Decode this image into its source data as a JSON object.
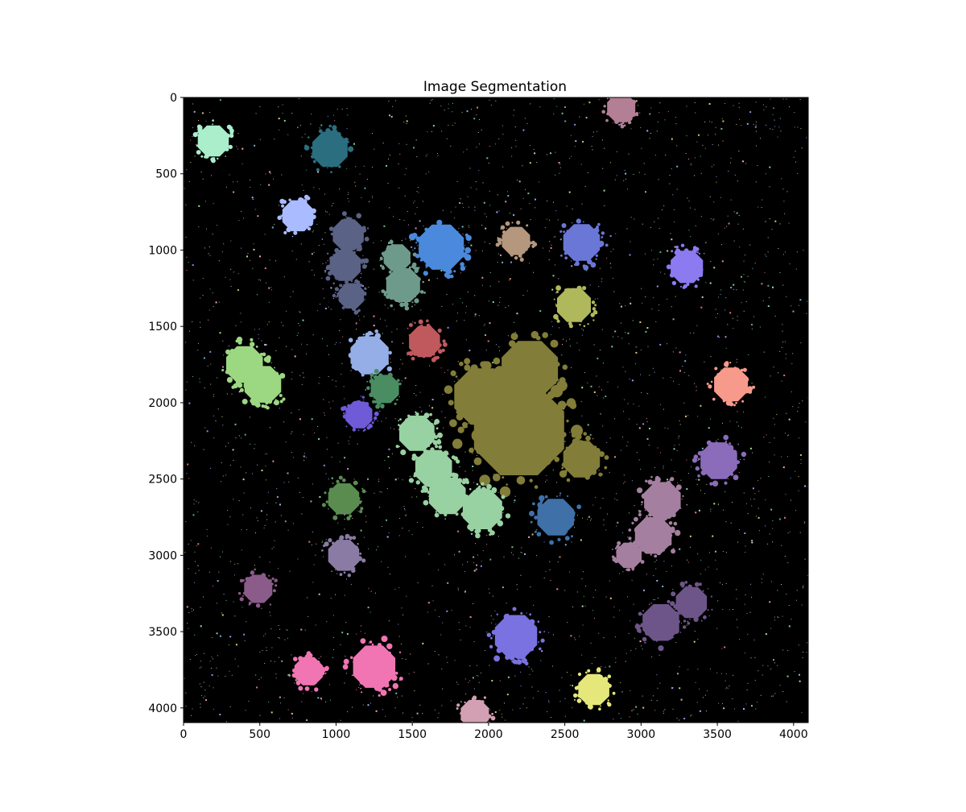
{
  "chart_data": {
    "type": "heatmap",
    "title": "Image Segmentation",
    "xlabel": "",
    "ylabel": "",
    "xlim": [
      0,
      4096
    ],
    "ylim": [
      4096,
      0
    ],
    "x_ticks": [
      0,
      500,
      1000,
      1500,
      2000,
      2500,
      3000,
      3500,
      4000
    ],
    "y_ticks": [
      0,
      500,
      1000,
      1500,
      2000,
      2500,
      3000,
      3500,
      4000
    ],
    "background_color": "#000000",
    "grid": false,
    "segments": [
      {
        "label": "teal-circle",
        "color": "#2b6e80",
        "cx": 960,
        "cy": 340,
        "r": 125
      },
      {
        "label": "mint-top-left",
        "color": "#aaeecc",
        "cx": 195,
        "cy": 285,
        "r": 110
      },
      {
        "label": "pink-top",
        "color": "#b37f94",
        "cx": 2870,
        "cy": 70,
        "r": 100
      },
      {
        "label": "light-blue-star",
        "color": "#aabbff",
        "cx": 750,
        "cy": 775,
        "r": 110
      },
      {
        "label": "slate-branch-1",
        "color": "#5a6286",
        "cx": 1080,
        "cy": 900,
        "r": 110
      },
      {
        "label": "slate-branch-2",
        "color": "#5a6286",
        "cx": 1060,
        "cy": 1100,
        "r": 110
      },
      {
        "label": "slate-branch-3",
        "color": "#5a6286",
        "cx": 1100,
        "cy": 1300,
        "r": 90
      },
      {
        "label": "grey-green-1",
        "color": "#6e9a8c",
        "cx": 1400,
        "cy": 1050,
        "r": 95
      },
      {
        "label": "grey-green-2",
        "color": "#6e9a8c",
        "cx": 1440,
        "cy": 1230,
        "r": 120
      },
      {
        "label": "blue-blob",
        "color": "#4b89dc",
        "cx": 1690,
        "cy": 980,
        "r": 160
      },
      {
        "label": "tan-star",
        "color": "#b5977e",
        "cx": 2180,
        "cy": 940,
        "r": 100
      },
      {
        "label": "periwinkle",
        "color": "#6a77d6",
        "cx": 2610,
        "cy": 950,
        "r": 130
      },
      {
        "label": "purple-right",
        "color": "#8b7af0",
        "cx": 3300,
        "cy": 1110,
        "r": 115
      },
      {
        "label": "olive-green",
        "color": "#b0b85c",
        "cx": 2560,
        "cy": 1360,
        "r": 120
      },
      {
        "label": "red-star",
        "color": "#c0595d",
        "cx": 1580,
        "cy": 1600,
        "r": 110
      },
      {
        "label": "cornflower",
        "color": "#95aee8",
        "cx": 1220,
        "cy": 1690,
        "r": 135
      },
      {
        "label": "green-double-1",
        "color": "#9cd882",
        "cx": 400,
        "cy": 1750,
        "r": 130
      },
      {
        "label": "green-double-2",
        "color": "#9cd882",
        "cx": 520,
        "cy": 1880,
        "r": 130
      },
      {
        "label": "salmon",
        "color": "#f79a8b",
        "cx": 3590,
        "cy": 1880,
        "r": 120
      },
      {
        "label": "dark-green-star",
        "color": "#4a8d63",
        "cx": 1320,
        "cy": 1910,
        "r": 100
      },
      {
        "label": "violet-small",
        "color": "#6f5ad8",
        "cx": 1150,
        "cy": 2080,
        "r": 95
      },
      {
        "label": "olive-mass-1",
        "color": "#827d38",
        "cx": 2200,
        "cy": 2180,
        "r": 320
      },
      {
        "label": "olive-mass-2",
        "color": "#827d38",
        "cx": 1960,
        "cy": 1960,
        "r": 200
      },
      {
        "label": "olive-mass-3",
        "color": "#827d38",
        "cx": 2270,
        "cy": 1780,
        "r": 200
      },
      {
        "label": "olive-mass-4",
        "color": "#827d38",
        "cx": 2610,
        "cy": 2370,
        "r": 130
      },
      {
        "label": "sea-green-chain-1",
        "color": "#98d1a2",
        "cx": 1530,
        "cy": 2200,
        "r": 125
      },
      {
        "label": "sea-green-chain-2",
        "color": "#98d1a2",
        "cx": 1640,
        "cy": 2430,
        "r": 130
      },
      {
        "label": "sea-green-chain-3",
        "color": "#98d1a2",
        "cx": 1730,
        "cy": 2610,
        "r": 130
      },
      {
        "label": "sea-green-chain-4",
        "color": "#98d1a2",
        "cx": 1960,
        "cy": 2700,
        "r": 140
      },
      {
        "label": "lavender-hex",
        "color": "#8a6cba",
        "cx": 3510,
        "cy": 2380,
        "r": 130
      },
      {
        "label": "mauve-1",
        "color": "#a47f9f",
        "cx": 3140,
        "cy": 2640,
        "r": 130
      },
      {
        "label": "mauve-2",
        "color": "#a47f9f",
        "cx": 3080,
        "cy": 2870,
        "r": 130
      },
      {
        "label": "mauve-tail",
        "color": "#a47f9f",
        "cx": 2920,
        "cy": 3000,
        "r": 90
      },
      {
        "label": "steel-blue",
        "color": "#3f70a8",
        "cx": 2440,
        "cy": 2750,
        "r": 130
      },
      {
        "label": "forest-green",
        "color": "#5a8c50",
        "cx": 1050,
        "cy": 2630,
        "r": 110
      },
      {
        "label": "dusty-purple",
        "color": "#8a7ba4",
        "cx": 1050,
        "cy": 3000,
        "r": 110
      },
      {
        "label": "plum-left",
        "color": "#8b5b8a",
        "cx": 490,
        "cy": 3220,
        "r": 100
      },
      {
        "label": "blue-violet",
        "color": "#7a72e0",
        "cx": 2180,
        "cy": 3530,
        "r": 150
      },
      {
        "label": "dark-purple-1",
        "color": "#6e5589",
        "cx": 3130,
        "cy": 3440,
        "r": 130
      },
      {
        "label": "dark-purple-2",
        "color": "#6e5589",
        "cx": 3330,
        "cy": 3310,
        "r": 110
      },
      {
        "label": "hot-pink-1",
        "color": "#f075b2",
        "cx": 1250,
        "cy": 3730,
        "r": 150
      },
      {
        "label": "hot-pink-2",
        "color": "#f075b2",
        "cx": 820,
        "cy": 3760,
        "r": 100
      },
      {
        "label": "yellow-star",
        "color": "#e5e77a",
        "cx": 2690,
        "cy": 3880,
        "r": 110
      },
      {
        "label": "rose-bottom",
        "color": "#d3a0b3",
        "cx": 1910,
        "cy": 4040,
        "r": 100
      }
    ]
  }
}
